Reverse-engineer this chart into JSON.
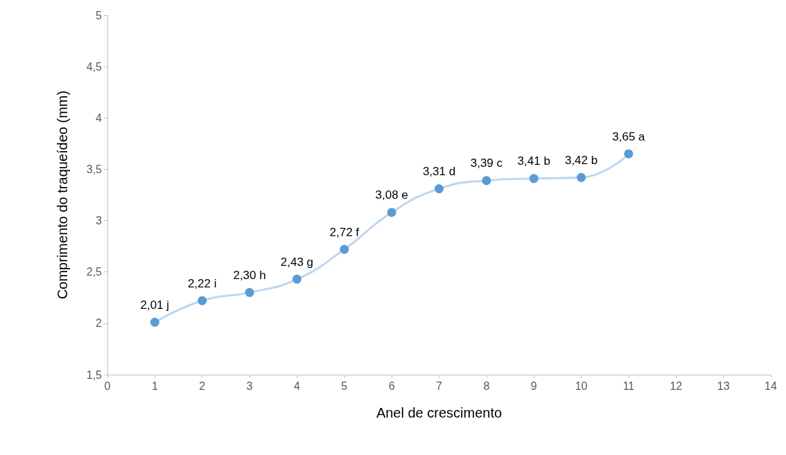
{
  "chart_data": {
    "type": "line",
    "xlabel": "Anel de crescimento",
    "ylabel": "Comprimento do traqueídeo (mm)",
    "x": [
      1,
      2,
      3,
      4,
      5,
      6,
      7,
      8,
      9,
      10,
      11
    ],
    "series": [
      {
        "color": "#5b9bd5",
        "values": [
          2.01,
          2.22,
          2.3,
          2.43,
          2.72,
          3.08,
          3.31,
          3.39,
          3.41,
          3.42,
          3.65
        ],
        "value_labels": [
          "2,01 j",
          "2,22 i",
          "2,30 h",
          "2,43 g",
          "2,72 f",
          "3,08 e",
          "3,31 d",
          "3,39 c",
          "3,41 b",
          "3,42 b",
          "3,65 a"
        ]
      }
    ],
    "xlim": [
      0,
      14
    ],
    "xticks": [
      0,
      1,
      2,
      3,
      4,
      5,
      6,
      7,
      8,
      9,
      10,
      11,
      12,
      13,
      14
    ],
    "ylim": [
      1.5,
      5
    ],
    "yticks": [
      {
        "value": 1.5,
        "label": "1,5"
      },
      {
        "value": 2,
        "label": "2"
      },
      {
        "value": 2.5,
        "label": "2,5"
      },
      {
        "value": 3,
        "label": "3"
      },
      {
        "value": 3.5,
        "label": "3,5"
      },
      {
        "value": 4,
        "label": "4"
      },
      {
        "value": 4.5,
        "label": "4,5"
      },
      {
        "value": 5,
        "label": "5"
      }
    ],
    "grid": false,
    "marker": "circle",
    "line_style": "solid"
  }
}
